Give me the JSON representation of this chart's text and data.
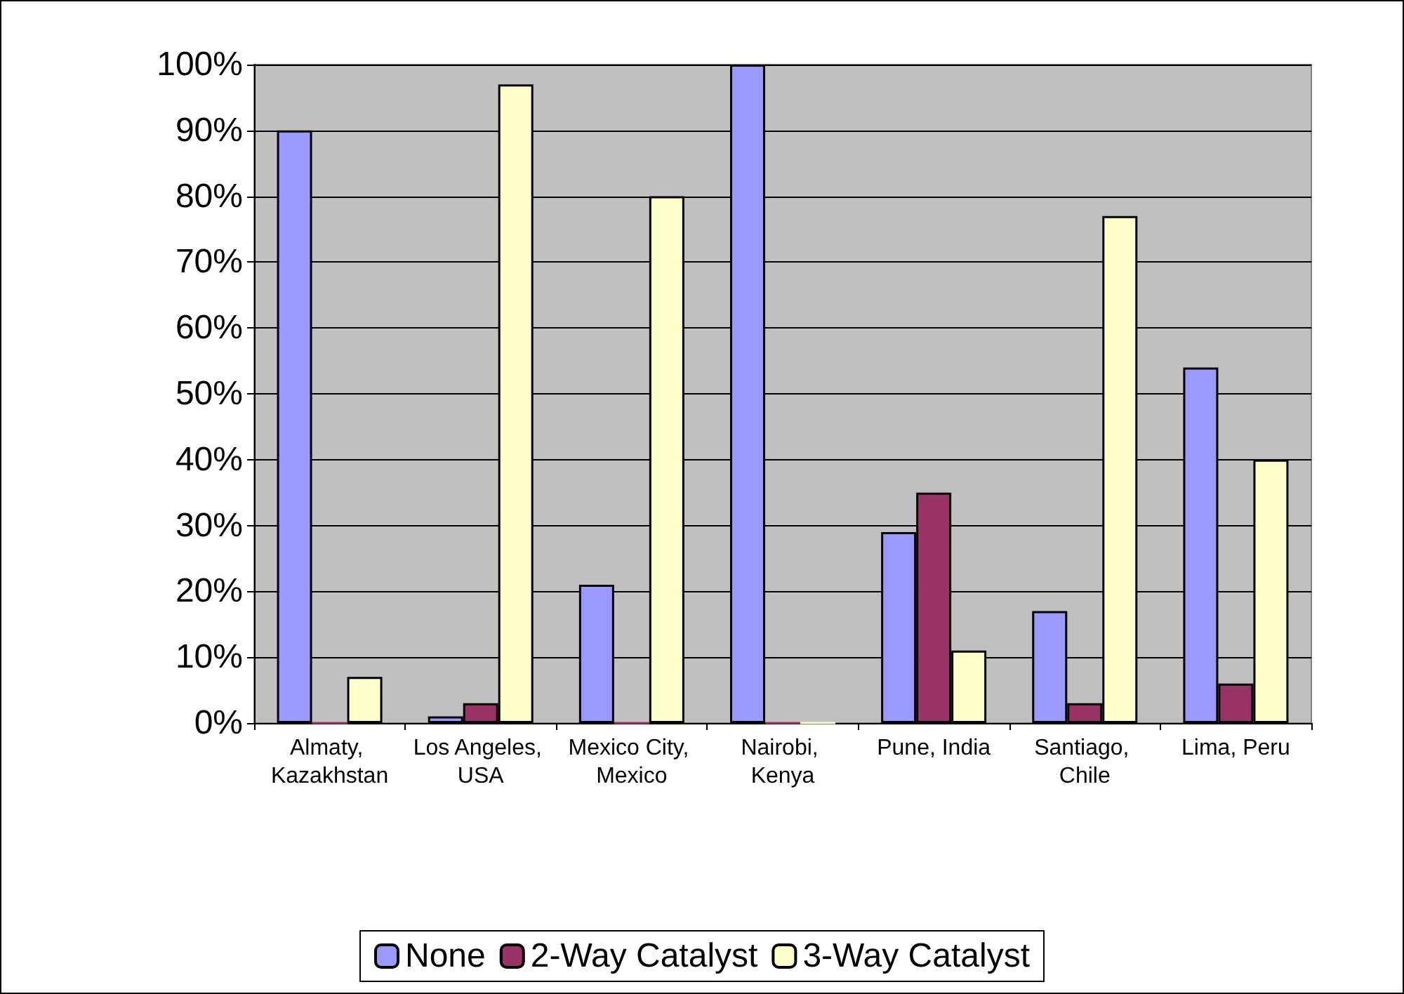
{
  "chart_data": {
    "type": "bar",
    "categories": [
      "Almaty, Kazakhstan",
      "Los Angeles, USA",
      "Mexico City, Mexico",
      "Nairobi, Kenya",
      "Pune, India",
      "Santiago, Chile",
      "Lima, Peru"
    ],
    "series": [
      {
        "name": "None",
        "color": "#9999ff",
        "values": [
          90,
          1,
          21,
          100,
          29,
          17,
          54
        ]
      },
      {
        "name": "2-Way Catalyst",
        "color": "#993366",
        "values": [
          0,
          3,
          0,
          0,
          35,
          3,
          6
        ]
      },
      {
        "name": "3-Way Catalyst",
        "color": "#ffffcc",
        "values": [
          7,
          97,
          80,
          0,
          11,
          77,
          40
        ]
      }
    ],
    "ylim": [
      0,
      100
    ],
    "yticks": [
      {
        "value": 0,
        "label": "0%"
      },
      {
        "value": 10,
        "label": "10%"
      },
      {
        "value": 20,
        "label": "20%"
      },
      {
        "value": 30,
        "label": "30%"
      },
      {
        "value": 40,
        "label": "40%"
      },
      {
        "value": 50,
        "label": "50%"
      },
      {
        "value": 60,
        "label": "60%"
      },
      {
        "value": 70,
        "label": "70%"
      },
      {
        "value": 80,
        "label": "80%"
      },
      {
        "value": 90,
        "label": "90%"
      },
      {
        "value": 100,
        "label": "100%"
      }
    ],
    "grid": "y",
    "legend": "bottom"
  }
}
